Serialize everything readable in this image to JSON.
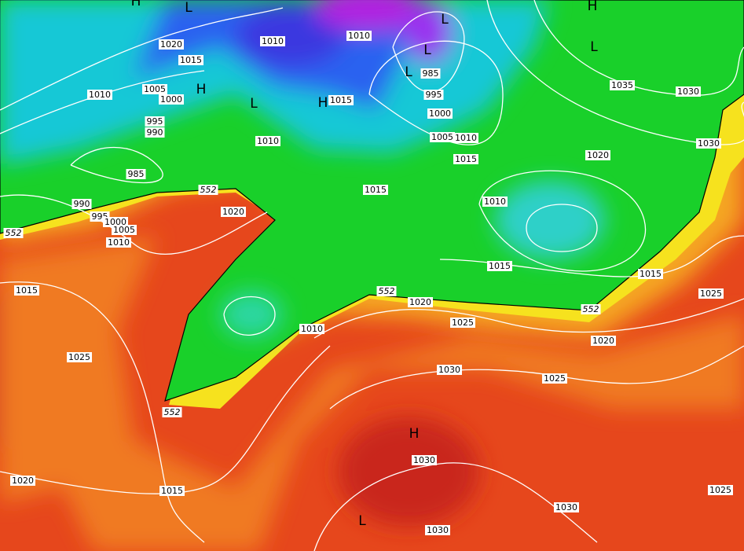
{
  "pressure_labels": [
    "1020",
    "1015",
    "1010",
    "1005",
    "1000",
    "995",
    "990",
    "985",
    "990",
    "995",
    "1000",
    "1005",
    "1010",
    "1010",
    "1010",
    "1015",
    "1010",
    "985",
    "995",
    "1000",
    "1005",
    "1010",
    "1015",
    "1010",
    "1015",
    "1020",
    "1035",
    "1030",
    "1030",
    "1020",
    "1015",
    "1025",
    "1015",
    "1020",
    "1025",
    "1010",
    "1020",
    "1015",
    "1025",
    "1030",
    "1025",
    "1030",
    "1020",
    "1015",
    "1030",
    "1030",
    "1025"
  ],
  "highs_lows": [
    "H",
    "L",
    "H",
    "L",
    "L",
    "L",
    "L",
    "H",
    "L",
    "H",
    "H",
    "L"
  ],
  "thickness_labels": [
    "552",
    "552",
    "552",
    "552",
    "552"
  ]
}
